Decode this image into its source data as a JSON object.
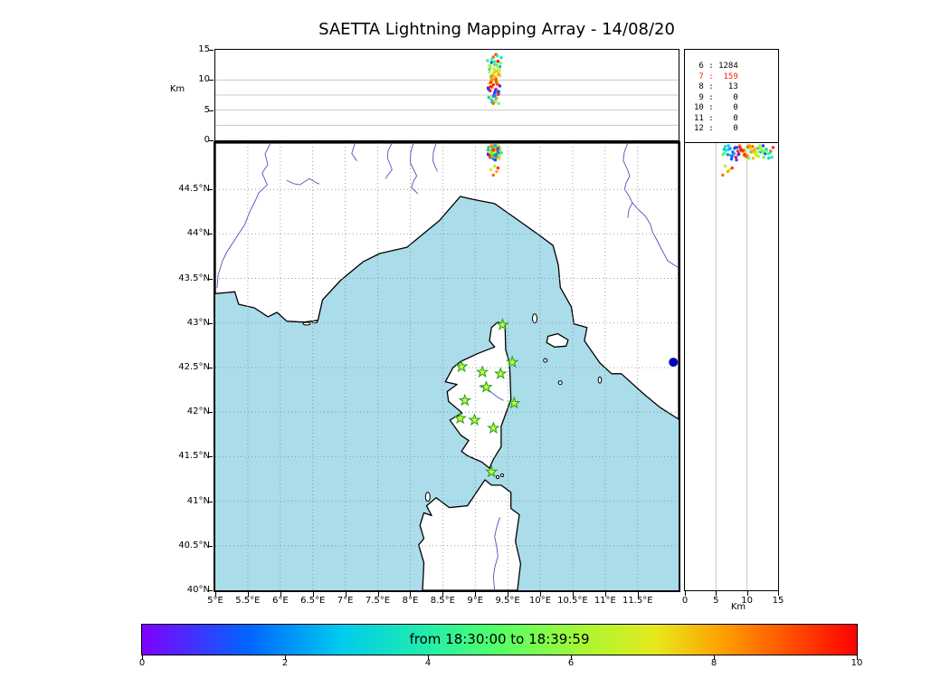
{
  "title": "SAETTA Lightning Mapping Array - 14/08/20",
  "colors": {
    "sea": "#aadcea",
    "land": "#ffffff",
    "coast": "#000000",
    "river": "#5050c0",
    "grid": "#888888",
    "panel_grid": "#c8c8c8",
    "station_fill": "#d8f53c",
    "station_stroke": "#1faa1f",
    "highlight_red": "#ff2200"
  },
  "chart_data": {
    "type": "scatter",
    "title": "SAETTA Lightning Mapping Array - 14/08/20",
    "panels": {
      "top": {
        "ylabel": "Km",
        "ylim": [
          0,
          15
        ],
        "yticks": [
          0,
          5,
          10,
          15
        ],
        "grid_alts": [
          2.5,
          5,
          7.5,
          10
        ]
      },
      "map": {
        "xlim": [
          5,
          12.13
        ],
        "ylim": [
          40,
          45.02
        ],
        "lon_ticks": [
          {
            "v": 5,
            "label": "5°E"
          },
          {
            "v": 5.5,
            "label": "5.5°E"
          },
          {
            "v": 6,
            "label": "6°E"
          },
          {
            "v": 6.5,
            "label": "6.5°E"
          },
          {
            "v": 7,
            "label": "7°E"
          },
          {
            "v": 7.5,
            "label": "7.5°E"
          },
          {
            "v": 8,
            "label": "8°E"
          },
          {
            "v": 8.5,
            "label": "8.5°E"
          },
          {
            "v": 9,
            "label": "9°E"
          },
          {
            "v": 9.5,
            "label": "9.5°E"
          },
          {
            "v": 10,
            "label": "10°E"
          },
          {
            "v": 10.5,
            "label": "10.5°E"
          },
          {
            "v": 11,
            "label": "11°E"
          },
          {
            "v": 11.5,
            "label": "11.5°E"
          }
        ],
        "lat_ticks": [
          {
            "v": 44.5,
            "label": "44.5°N"
          },
          {
            "v": 44,
            "label": "44°N"
          },
          {
            "v": 43.5,
            "label": "43.5°N"
          },
          {
            "v": 43,
            "label": "43°N"
          },
          {
            "v": 42.5,
            "label": "42.5°N"
          },
          {
            "v": 42,
            "label": "42°N"
          },
          {
            "v": 41.5,
            "label": "41.5°N"
          },
          {
            "v": 41,
            "label": "41°N"
          },
          {
            "v": 40.5,
            "label": "40.5°N"
          },
          {
            "v": 40,
            "label": "40°N"
          }
        ]
      },
      "right": {
        "xlabel": "Km",
        "xlim": [
          0,
          15
        ],
        "xticks": [
          0,
          5,
          10,
          15
        ],
        "grid_alts": [
          5,
          10
        ]
      }
    },
    "colorbar": {
      "label": "from 18:30:00 to 18:39:59",
      "range": [
        0,
        10
      ],
      "ticks": [
        0,
        2,
        4,
        6,
        8,
        10
      ],
      "gradient": [
        [
          0,
          "#8000ff"
        ],
        [
          0.15,
          "#0066ff"
        ],
        [
          0.28,
          "#00ccee"
        ],
        [
          0.4,
          "#22eeaa"
        ],
        [
          0.5,
          "#55ff66"
        ],
        [
          0.62,
          "#aaf733"
        ],
        [
          0.72,
          "#e8e81c"
        ],
        [
          0.82,
          "#ff9900"
        ],
        [
          1,
          "#ff0000"
        ]
      ]
    },
    "station_counts": [
      {
        "station": "6",
        "count": "1284",
        "color": "#000000"
      },
      {
        "station": "7",
        "count": "159",
        "color": "#ff2200"
      },
      {
        "station": "8",
        "count": "13",
        "color": "#000000"
      },
      {
        "station": "9",
        "count": "0",
        "color": "#000000"
      },
      {
        "station": "10",
        "count": "0",
        "color": "#000000"
      },
      {
        "station": "11",
        "count": "0",
        "color": "#000000"
      },
      {
        "station": "12",
        "count": "0",
        "color": "#000000"
      }
    ],
    "stations": [
      [
        9.42,
        42.98
      ],
      [
        8.79,
        42.51
      ],
      [
        9.11,
        42.45
      ],
      [
        9.39,
        42.43
      ],
      [
        9.57,
        42.56
      ],
      [
        9.17,
        42.28
      ],
      [
        8.84,
        42.13
      ],
      [
        9.6,
        42.1
      ],
      [
        8.77,
        41.93
      ],
      [
        8.99,
        41.91
      ],
      [
        9.28,
        41.82
      ],
      [
        9.25,
        41.33
      ]
    ],
    "sea_marker": {
      "lon": 12.05,
      "lat": 42.56,
      "color": "#0000bb"
    },
    "points": [
      [
        9.32,
        44.97,
        14.2,
        9.5
      ],
      [
        9.28,
        44.93,
        13.8,
        8.8
      ],
      [
        9.35,
        44.95,
        13.1,
        9.9
      ],
      [
        9.3,
        44.99,
        12.6,
        0.8
      ],
      [
        9.25,
        44.9,
        12.9,
        1.5
      ],
      [
        9.38,
        44.92,
        12.2,
        2.2
      ],
      [
        9.22,
        44.96,
        11.8,
        3.0
      ],
      [
        9.33,
        44.88,
        11.5,
        7.5
      ],
      [
        9.29,
        44.94,
        11.2,
        8.2
      ],
      [
        9.36,
        44.98,
        10.9,
        9.1
      ],
      [
        9.24,
        44.92,
        10.6,
        4.1
      ],
      [
        9.31,
        44.85,
        10.3,
        5.0
      ],
      [
        9.27,
        44.97,
        10.0,
        5.8
      ],
      [
        9.34,
        44.91,
        9.7,
        6.6
      ],
      [
        9.21,
        44.88,
        9.4,
        7.2
      ],
      [
        9.37,
        44.95,
        9.1,
        7.9
      ],
      [
        9.26,
        44.99,
        8.8,
        8.5
      ],
      [
        9.32,
        44.93,
        8.5,
        9.3
      ],
      [
        9.23,
        44.86,
        8.2,
        9.8
      ],
      [
        9.3,
        44.9,
        7.9,
        0.4
      ],
      [
        9.35,
        44.87,
        7.6,
        1.2
      ],
      [
        9.28,
        44.96,
        7.3,
        2.0
      ],
      [
        9.33,
        44.99,
        7.0,
        2.8
      ],
      [
        9.25,
        44.94,
        6.7,
        3.6
      ],
      [
        9.31,
        44.91,
        6.4,
        4.4
      ],
      [
        9.36,
        44.89,
        6.1,
        5.2
      ],
      [
        9.22,
        44.93,
        12.4,
        6.0
      ],
      [
        9.29,
        44.87,
        11.9,
        6.8
      ],
      [
        9.34,
        44.96,
        11.4,
        7.6
      ],
      [
        9.27,
        44.92,
        10.8,
        8.4
      ],
      [
        9.32,
        44.98,
        10.2,
        9.2
      ],
      [
        9.24,
        44.89,
        9.6,
        9.7
      ],
      [
        9.38,
        44.94,
        9.0,
        0.6
      ],
      [
        9.21,
        44.97,
        8.4,
        1.4
      ],
      [
        9.35,
        44.9,
        7.8,
        2.3
      ],
      [
        9.26,
        44.85,
        13.5,
        3.1
      ],
      [
        9.3,
        44.95,
        13.0,
        3.9
      ],
      [
        9.33,
        44.92,
        12.5,
        4.7
      ],
      [
        9.23,
        44.98,
        12.0,
        5.5
      ],
      [
        9.37,
        44.88,
        11.6,
        6.3
      ],
      [
        9.28,
        44.91,
        11.1,
        7.1
      ],
      [
        9.31,
        44.96,
        10.5,
        7.8
      ],
      [
        9.25,
        44.87,
        9.9,
        8.6
      ],
      [
        9.34,
        44.93,
        9.3,
        9.4
      ],
      [
        9.2,
        44.9,
        8.7,
        9.9
      ],
      [
        9.36,
        44.97,
        8.1,
        0.3
      ],
      [
        9.29,
        44.84,
        7.5,
        1.1
      ],
      [
        9.32,
        44.89,
        6.9,
        1.9
      ],
      [
        9.26,
        44.95,
        6.3,
        2.7
      ],
      [
        9.4,
        44.91,
        13.7,
        3.5
      ],
      [
        9.19,
        44.94,
        13.2,
        4.3
      ],
      [
        9.3,
        44.86,
        12.7,
        5.1
      ],
      [
        9.35,
        44.99,
        12.1,
        5.9
      ],
      [
        9.22,
        44.91,
        11.3,
        6.7
      ],
      [
        9.38,
        44.96,
        10.7,
        7.4
      ],
      [
        9.27,
        44.88,
        10.1,
        8.1
      ],
      [
        9.33,
        44.94,
        9.5,
        8.9
      ],
      [
        9.24,
        44.97,
        8.9,
        9.6
      ],
      [
        9.31,
        44.83,
        8.3,
        0.9
      ],
      [
        9.36,
        44.92,
        7.7,
        1.7
      ],
      [
        9.21,
        44.95,
        7.1,
        2.5
      ],
      [
        9.29,
        44.98,
        6.5,
        3.3
      ],
      [
        9.34,
        44.86,
        14.0,
        4.0
      ],
      [
        9.26,
        44.9,
        13.4,
        4.8
      ],
      [
        9.39,
        44.93,
        12.8,
        5.6
      ],
      [
        9.23,
        44.96,
        12.3,
        6.4
      ],
      [
        9.3,
        44.92,
        11.7,
        7.0
      ],
      [
        9.37,
        44.85,
        11.0,
        7.7
      ],
      [
        9.25,
        44.99,
        10.4,
        8.3
      ],
      [
        9.32,
        44.87,
        9.8,
        9.0
      ],
      [
        9.28,
        44.94,
        9.2,
        9.5
      ],
      [
        9.2,
        44.89,
        8.6,
        0.5
      ],
      [
        9.35,
        44.96,
        8.0,
        1.3
      ],
      [
        9.3,
        44.88,
        7.4,
        2.1
      ],
      [
        9.3,
        44.76,
        6.5,
        6.2
      ],
      [
        9.24,
        44.72,
        7.2,
        7.0
      ],
      [
        9.33,
        44.7,
        6.9,
        8.0
      ],
      [
        9.28,
        44.66,
        6.1,
        8.8
      ],
      [
        9.35,
        44.74,
        7.6,
        9.4
      ]
    ]
  }
}
